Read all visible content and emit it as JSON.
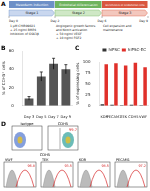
{
  "panel_a": {
    "label": "A",
    "phases": [
      "Mesoderm induction",
      "Endothelial differentiation",
      "Enrichment of endothelial cells"
    ],
    "stages": [
      "Stage 1",
      "Stage 2",
      "Stage 3"
    ],
    "days": [
      "Day 0",
      "Day 2",
      "Day 6",
      "Day 9"
    ],
    "conditions": [
      [
        "1 µM CHIR99021",
        "+ 25 ng/ml BMP4",
        "Inhibition of GSK3β"
      ],
      [
        "Angiogenic growth factors",
        "and Notch activation",
        "+ 50 ng/ml VEGF",
        "+ 10 ng/ml FGF2"
      ],
      [
        "Cell expansion and",
        "maintenance"
      ]
    ]
  },
  "chart_data": [
    {
      "type": "bar",
      "annotations": [
        "B"
      ],
      "y_label": "% of CDH5⁺ cells",
      "categories": [
        "Day 3",
        "Day 5",
        "Day 7",
        "Day 9"
      ],
      "values": [
        8,
        32,
        46,
        40
      ],
      "errors": [
        2,
        5,
        6,
        5
      ],
      "color": "#555555",
      "ylim": [
        0,
        60
      ],
      "yticks": [
        0,
        20,
        40,
        60
      ],
      "grid": false
    },
    {
      "type": "bar",
      "annotations": [
        "C"
      ],
      "y_label": "% of expressing cells",
      "categories": [
        "KDR",
        "PECAM1",
        "TEK",
        "CDH5",
        "VWF"
      ],
      "series": [
        {
          "name": "hiPSC",
          "color": "#333333",
          "values": [
            3,
            2,
            1,
            2,
            1
          ]
        },
        {
          "name": "hiPSC-EC",
          "color": "#e0302a",
          "values": [
            95,
            97,
            92,
            98,
            88
          ]
        }
      ],
      "ylim": [
        0,
        100
      ],
      "yticks": [
        0,
        25,
        50,
        75,
        100
      ],
      "grid": false,
      "legend": "top-right"
    }
  ],
  "panel_d": {
    "label": "D",
    "plots": [
      {
        "name": "Isotype"
      },
      {
        "name": "CDH5",
        "value": 99.7
      }
    ],
    "axis_label": "CDH5",
    "histograms": [
      {
        "name": "VWF",
        "value": 96.8
      },
      {
        "name": "TEK",
        "value": 93.5
      },
      {
        "name": "KDR",
        "value": 98.5
      },
      {
        "name": "PECAM1",
        "value": 97.2
      }
    ]
  }
}
